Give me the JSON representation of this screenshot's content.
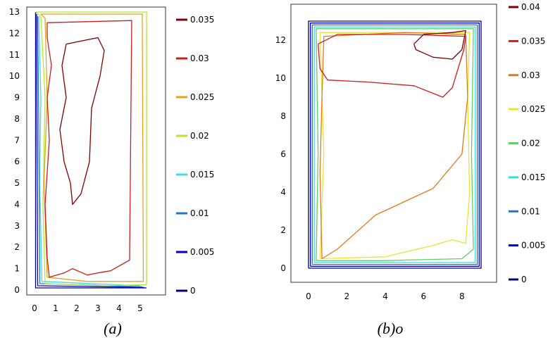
{
  "chart_data": [
    {
      "type": "contour",
      "caption": "(a)",
      "xlim": [
        0,
        5.5
      ],
      "ylim": [
        0,
        13
      ],
      "xticks": [
        "0",
        "1",
        "2",
        "3",
        "4",
        "5"
      ],
      "yticks": [
        "0",
        "1",
        "2",
        "3",
        "4",
        "5",
        "6",
        "7",
        "8",
        "9",
        "10",
        "11",
        "12",
        "13"
      ],
      "colorbar": {
        "ticks": [
          "0",
          "0.005",
          "0.01",
          "0.015",
          "0.02",
          "0.025",
          "0.03",
          "0.035"
        ],
        "levels": [
          {
            "value": 0,
            "color": "#00007f"
          },
          {
            "value": 0.005,
            "color": "#0000c8"
          },
          {
            "value": 0.01,
            "color": "#1f77c8"
          },
          {
            "value": 0.015,
            "color": "#3fdcdc"
          },
          {
            "value": 0.02,
            "color": "#b4e632"
          },
          {
            "value": 0.025,
            "color": "#e6a21e"
          },
          {
            "value": 0.03,
            "color": "#c81e1e"
          },
          {
            "value": 0.035,
            "color": "#7f0000"
          }
        ]
      },
      "contours": [
        {
          "level": 0,
          "points": [
            [
              0.05,
              13
            ],
            [
              0.05,
              0.1
            ],
            [
              5.3,
              0.1
            ]
          ]
        },
        {
          "level": 0.005,
          "points": [
            [
              0.1,
              12.9
            ],
            [
              0.12,
              7
            ],
            [
              0.15,
              0.2
            ],
            [
              5.2,
              0.12
            ]
          ]
        },
        {
          "level": 0.01,
          "points": [
            [
              0.15,
              12.8
            ],
            [
              0.2,
              8
            ],
            [
              0.25,
              0.3
            ],
            [
              5.1,
              0.15
            ]
          ]
        },
        {
          "level": 0.015,
          "points": [
            [
              0.2,
              12.8
            ],
            [
              0.3,
              9
            ],
            [
              0.25,
              5
            ],
            [
              0.35,
              0.4
            ],
            [
              5,
              0.2
            ]
          ]
        },
        {
          "level": 0.02,
          "points": [
            [
              0.05,
              13
            ],
            [
              5.3,
              13
            ],
            [
              5.3,
              0.25
            ],
            [
              3,
              0.2
            ],
            [
              0.5,
              0.3
            ],
            [
              0.4,
              4
            ],
            [
              0.5,
              9
            ],
            [
              0.3,
              12.8
            ],
            [
              0.05,
              13
            ]
          ]
        },
        {
          "level": 0.025,
          "points": [
            [
              0.3,
              12.9
            ],
            [
              5.1,
              12.9
            ],
            [
              5.15,
              0.4
            ],
            [
              2.5,
              0.4
            ],
            [
              0.6,
              0.6
            ],
            [
              0.45,
              5
            ],
            [
              0.6,
              9
            ],
            [
              0.5,
              12.7
            ],
            [
              0.3,
              12.9
            ]
          ]
        },
        {
          "level": 0.03,
          "points": [
            [
              0.6,
              12.5
            ],
            [
              4.6,
              12.6
            ],
            [
              4.5,
              1.4
            ],
            [
              3.6,
              0.9
            ],
            [
              3.0,
              0.8
            ],
            [
              2.5,
              0.7
            ],
            [
              1.8,
              1.0
            ],
            [
              1.4,
              0.8
            ],
            [
              0.7,
              0.6
            ],
            [
              0.6,
              1.5
            ],
            [
              0.5,
              4
            ],
            [
              0.7,
              7
            ],
            [
              0.6,
              9
            ],
            [
              0.8,
              10.5
            ],
            [
              0.6,
              11.8
            ],
            [
              0.6,
              12.5
            ]
          ]
        },
        {
          "level": 0.035,
          "points": [
            [
              1.5,
              11.5
            ],
            [
              3.0,
              11.8
            ],
            [
              3.3,
              11.2
            ],
            [
              3.1,
              10
            ],
            [
              2.7,
              8.5
            ],
            [
              2.6,
              6
            ],
            [
              2.2,
              4.5
            ],
            [
              1.8,
              4.0
            ],
            [
              1.7,
              5
            ],
            [
              1.4,
              6
            ],
            [
              1.2,
              7.5
            ],
            [
              1.5,
              9
            ],
            [
              1.3,
              10.5
            ],
            [
              1.5,
              11.5
            ]
          ]
        }
      ]
    },
    {
      "type": "contour",
      "caption": "(b)o",
      "xlim": [
        0,
        9
      ],
      "ylim": [
        0,
        13
      ],
      "xticks": [
        "0",
        "2",
        "4",
        "6",
        "8"
      ],
      "yticks": [
        "0",
        "2",
        "4",
        "6",
        "8",
        "10",
        "12"
      ],
      "colorbar": {
        "ticks": [
          "0",
          "0.005",
          "0.01",
          "0.015",
          "0.02",
          "0.025",
          "0.03",
          "0.035",
          "0.04"
        ],
        "levels": [
          {
            "value": 0,
            "color": "#00007f"
          },
          {
            "value": 0.005,
            "color": "#0000c8"
          },
          {
            "value": 0.01,
            "color": "#1f77c8"
          },
          {
            "value": 0.015,
            "color": "#3fdcdc"
          },
          {
            "value": 0.02,
            "color": "#66cc66"
          },
          {
            "value": 0.025,
            "color": "#e6e632"
          },
          {
            "value": 0.03,
            "color": "#e07a1e"
          },
          {
            "value": 0.035,
            "color": "#c81e1e"
          },
          {
            "value": 0.04,
            "color": "#7f0000"
          }
        ]
      },
      "contours": [
        {
          "level": 0,
          "points": [
            [
              0,
              0
            ],
            [
              0,
              13
            ],
            [
              9,
              13
            ],
            [
              9,
              0
            ],
            [
              0,
              0
            ]
          ]
        },
        {
          "level": 0.005,
          "points": [
            [
              0.1,
              0.1
            ],
            [
              0.1,
              12.9
            ],
            [
              8.9,
              12.9
            ],
            [
              8.9,
              0.1
            ],
            [
              0.1,
              0.1
            ]
          ]
        },
        {
          "level": 0.01,
          "points": [
            [
              0.2,
              0.2
            ],
            [
              0.2,
              12.8
            ],
            [
              8.8,
              12.8
            ],
            [
              8.8,
              0.2
            ],
            [
              0.2,
              0.2
            ]
          ]
        },
        {
          "level": 0.015,
          "points": [
            [
              0.3,
              0.3
            ],
            [
              0.3,
              12.7
            ],
            [
              8.7,
              12.7
            ],
            [
              8.7,
              0.3
            ],
            [
              0.3,
              0.3
            ]
          ]
        },
        {
          "level": 0.02,
          "points": [
            [
              0.4,
              0.4
            ],
            [
              0.5,
              6
            ],
            [
              0.4,
              12.6
            ],
            [
              8.6,
              12.6
            ],
            [
              8.5,
              6
            ],
            [
              8.6,
              1.0
            ],
            [
              8,
              0.5
            ],
            [
              4,
              0.4
            ],
            [
              0.4,
              0.4
            ]
          ]
        },
        {
          "level": 0.025,
          "points": [
            [
              0.6,
              0.5
            ],
            [
              0.8,
              6
            ],
            [
              0.6,
              12.4
            ],
            [
              8.4,
              12.4
            ],
            [
              8.3,
              9
            ],
            [
              8.4,
              4
            ],
            [
              8.2,
              1.3
            ],
            [
              7.5,
              1.5
            ],
            [
              6.5,
              1.2
            ],
            [
              4,
              0.6
            ],
            [
              0.6,
              0.5
            ]
          ]
        },
        {
          "level": 0.03,
          "points": [
            [
              0.7,
              0.5
            ],
            [
              1.5,
              1.0
            ],
            [
              3.5,
              2.8
            ],
            [
              6.5,
              4.2
            ],
            [
              8.0,
              6.0
            ],
            [
              8.3,
              9
            ],
            [
              8.2,
              12.3
            ],
            [
              5,
              12.4
            ],
            [
              0.8,
              12.2
            ],
            [
              0.7,
              9
            ],
            [
              0.6,
              5
            ],
            [
              0.7,
              0.5
            ]
          ]
        },
        {
          "level": 0.035,
          "points": [
            [
              0.5,
              11.8
            ],
            [
              1.5,
              12.3
            ],
            [
              5,
              12.3
            ],
            [
              8.2,
              12.2
            ],
            [
              8.1,
              11.5
            ],
            [
              7.8,
              10.5
            ],
            [
              7.5,
              9.5
            ],
            [
              7.0,
              9.0
            ],
            [
              5.5,
              9.6
            ],
            [
              3,
              9.8
            ],
            [
              1,
              9.9
            ],
            [
              0.6,
              10.5
            ],
            [
              0.5,
              11.8
            ]
          ]
        },
        {
          "level": 0.04,
          "points": [
            [
              5.5,
              11.8
            ],
            [
              6.0,
              12.3
            ],
            [
              7.5,
              12.4
            ],
            [
              8.2,
              12.5
            ],
            [
              8.0,
              11.5
            ],
            [
              7.5,
              11.0
            ],
            [
              6.5,
              11.1
            ],
            [
              5.6,
              11.5
            ],
            [
              5.5,
              11.8
            ]
          ]
        }
      ]
    }
  ]
}
